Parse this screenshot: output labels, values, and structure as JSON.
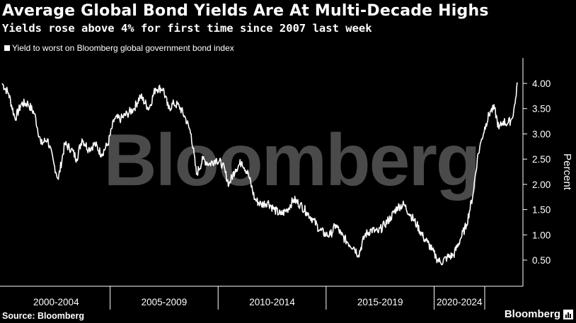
{
  "header": {
    "title": "Average Global Bond Yields Are At Multi-Decade Highs",
    "subtitle": "Yields rose above 4% for first time since 2007 last week"
  },
  "legend": {
    "label": "Yield to worst on Bloomberg global government bond index"
  },
  "footer": {
    "source": "Source: Bloomberg",
    "brand": "Bloomberg"
  },
  "watermark": "Bloomberg",
  "colors": {
    "background": "#000000",
    "line": "#ffffff",
    "watermark": "#4a4a4a"
  },
  "chart_data": {
    "type": "line",
    "title": "Average Global Bond Yields Are At Multi-Decade Highs",
    "subtitle": "Yields rose above 4% for first time since 2007 last week",
    "ylabel": "Percent",
    "xlabel": "",
    "ylim": [
      0.0,
      4.5
    ],
    "xlim": [
      2000.0,
      2023.85
    ],
    "y_ticks": [
      0.5,
      1.0,
      1.5,
      2.0,
      2.5,
      3.0,
      3.5,
      4.0
    ],
    "y_tick_labels": [
      "0.50",
      "1.00",
      "1.50",
      "2.00",
      "2.50",
      "3.00",
      "3.50",
      "4.00"
    ],
    "x_groups": [
      {
        "label": "2000-2004",
        "start": 2000,
        "end": 2005
      },
      {
        "label": "2005-2009",
        "start": 2005,
        "end": 2010
      },
      {
        "label": "2010-2014",
        "start": 2010,
        "end": 2015
      },
      {
        "label": "2015-2019",
        "start": 2015,
        "end": 2020
      },
      {
        "label": "2020-2024",
        "start": 2020,
        "end": 2025
      }
    ],
    "grid": false,
    "legend_position": "top-left",
    "series": [
      {
        "name": "Yield to worst on Bloomberg global government bond index",
        "x": [
          2000.0,
          2000.3,
          2000.6,
          2000.9,
          2001.2,
          2001.5,
          2001.8,
          2002.1,
          2002.4,
          2002.6,
          2002.9,
          2003.2,
          2003.45,
          2003.7,
          2004.0,
          2004.3,
          2004.6,
          2004.9,
          2005.2,
          2005.5,
          2005.8,
          2006.1,
          2006.4,
          2006.8,
          2007.1,
          2007.45,
          2007.7,
          2007.95,
          2008.2,
          2008.5,
          2008.75,
          2009.0,
          2009.3,
          2009.6,
          2009.9,
          2010.2,
          2010.5,
          2010.8,
          2011.1,
          2011.4,
          2011.7,
          2012.0,
          2012.3,
          2012.6,
          2012.9,
          2013.2,
          2013.5,
          2013.8,
          2014.1,
          2014.4,
          2014.7,
          2015.0,
          2015.2,
          2015.45,
          2015.7,
          2016.0,
          2016.3,
          2016.5,
          2016.8,
          2017.1,
          2017.4,
          2017.7,
          2018.0,
          2018.3,
          2018.6,
          2018.9,
          2019.2,
          2019.5,
          2019.7,
          2019.9,
          2020.1,
          2020.3,
          2020.6,
          2020.9,
          2021.2,
          2021.5,
          2021.8,
          2022.0,
          2022.2,
          2022.4,
          2022.6,
          2022.8,
          2023.0,
          2023.2,
          2023.4,
          2023.6,
          2023.75,
          2023.85
        ],
        "values": [
          4.0,
          3.8,
          3.3,
          3.6,
          3.6,
          3.4,
          2.8,
          2.9,
          2.4,
          2.1,
          2.8,
          2.7,
          2.5,
          2.9,
          2.7,
          2.8,
          2.6,
          2.8,
          3.3,
          3.3,
          3.4,
          3.5,
          3.75,
          3.5,
          3.9,
          3.9,
          3.5,
          3.6,
          3.55,
          3.3,
          3.0,
          2.2,
          2.5,
          2.4,
          2.5,
          2.4,
          2.0,
          2.3,
          2.45,
          2.2,
          1.7,
          1.6,
          1.65,
          1.5,
          1.4,
          1.5,
          1.7,
          1.6,
          1.45,
          1.3,
          1.1,
          1.0,
          1.0,
          1.2,
          1.0,
          0.85,
          0.75,
          0.6,
          1.0,
          1.1,
          1.05,
          1.2,
          1.35,
          1.55,
          1.6,
          1.4,
          1.2,
          0.95,
          0.85,
          0.7,
          0.55,
          0.45,
          0.55,
          0.6,
          0.9,
          1.2,
          1.8,
          2.5,
          2.9,
          3.2,
          3.45,
          3.5,
          3.1,
          3.25,
          3.2,
          3.3,
          3.6,
          4.02
        ]
      }
    ]
  }
}
